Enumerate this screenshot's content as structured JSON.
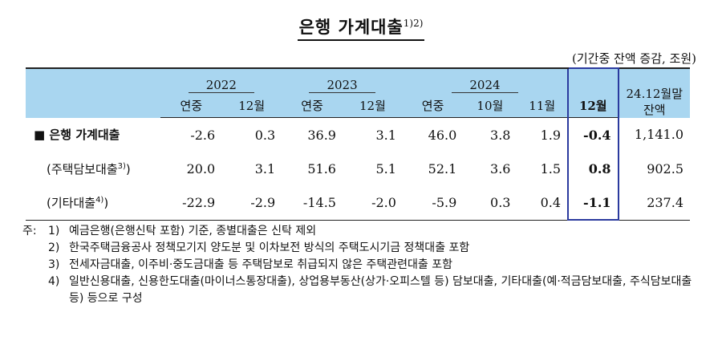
{
  "title": {
    "text": "은행 가계대출",
    "sup": "1)2)"
  },
  "unit": "(기간중 잔액 증감, 조원)",
  "header": {
    "years": [
      "2022",
      "2023",
      "2024"
    ],
    "balance": "24.12월말 잔액",
    "periods": [
      "연중",
      "12월",
      "연중",
      "12월",
      "연중",
      "10월",
      "11월",
      "12월"
    ]
  },
  "rows": [
    {
      "label": "■ 은행 가계대출",
      "sup": "",
      "values": [
        "-2.6",
        "0.3",
        "36.9",
        "3.1",
        "46.0",
        "3.8",
        "1.9",
        "-0.4",
        "1,141.0"
      ]
    },
    {
      "label": "(주택담보대출",
      "sup": "3)",
      "close": ")",
      "values": [
        "20.0",
        "3.1",
        "51.6",
        "5.1",
        "52.1",
        "3.6",
        "1.5",
        "0.8",
        "902.5"
      ]
    },
    {
      "label": "(기타대출",
      "sup": "4)",
      "close": ")",
      "values": [
        "-22.9",
        "-2.9",
        "-14.5",
        "-2.0",
        "-5.9",
        "0.3",
        "0.4",
        "-1.1",
        "237.4"
      ]
    }
  ],
  "notes": {
    "prefix": "주:",
    "items": [
      {
        "num": "1)",
        "text": "예금은행(은행신탁 포함) 기준, 종별대출은 신탁 제외"
      },
      {
        "num": "2)",
        "text": "한국주택금융공사 정책모기지 양도분 및 이차보전 방식의 주택도시기금 정책대출 포함"
      },
      {
        "num": "3)",
        "text": "전세자금대출, 이주비·중도금대출 등 주택담보로 취급되지 않은 주택관련대출 포함"
      },
      {
        "num": "4)",
        "text": "일반신용대출, 신용한도대출(마이너스통장대출), 상업용부동산(상가·오피스텔 등) 담보대출, 기타대출(예·적금담보대출, 주식담보대출 등) 등으로 구성"
      }
    ]
  },
  "colors": {
    "header_bg": "#a9d6f0",
    "highlight_border": "#2b3a9e"
  }
}
